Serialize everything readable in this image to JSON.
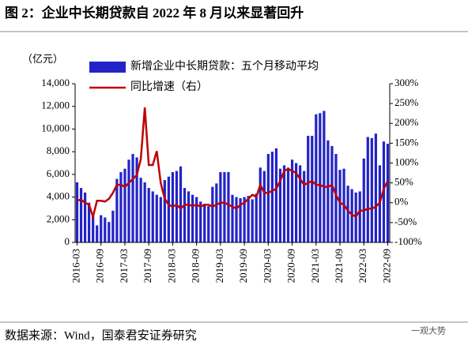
{
  "chart_data": {
    "type": "bar_line",
    "title": "图 2：企业中长期贷款自 2022 年 8 月以来显著回升",
    "y_unit": "（亿元）",
    "source": "数据来源：Wind，国泰君安证券研究",
    "watermark": "一观大势",
    "categories": [
      "2016-03",
      "2016-04",
      "2016-05",
      "2016-06",
      "2016-07",
      "2016-08",
      "2016-09",
      "2016-10",
      "2016-11",
      "2016-12",
      "2017-01",
      "2017-02",
      "2017-03",
      "2017-04",
      "2017-05",
      "2017-06",
      "2017-07",
      "2017-08",
      "2017-09",
      "2017-10",
      "2017-11",
      "2017-12",
      "2018-01",
      "2018-02",
      "2018-03",
      "2018-04",
      "2018-05",
      "2018-06",
      "2018-07",
      "2018-08",
      "2018-09",
      "2018-10",
      "2018-11",
      "2018-12",
      "2019-01",
      "2019-02",
      "2019-03",
      "2019-04",
      "2019-05",
      "2019-06",
      "2019-07",
      "2019-08",
      "2019-09",
      "2019-10",
      "2019-11",
      "2019-12",
      "2020-01",
      "2020-02",
      "2020-03",
      "2020-04",
      "2020-05",
      "2020-06",
      "2020-07",
      "2020-08",
      "2020-09",
      "2020-10",
      "2020-11",
      "2020-12",
      "2021-01",
      "2021-02",
      "2021-03",
      "2021-04",
      "2021-05",
      "2021-06",
      "2021-07",
      "2021-08",
      "2021-09",
      "2021-10",
      "2021-11",
      "2021-12",
      "2022-01",
      "2022-02",
      "2022-03",
      "2022-04",
      "2022-05",
      "2022-06",
      "2022-07",
      "2022-08",
      "2022-09"
    ],
    "xticks": [
      "2016-03",
      "2016-09",
      "2017-03",
      "2017-09",
      "2018-03",
      "2018-09",
      "2019-03",
      "2019-09",
      "2020-03",
      "2020-09",
      "2021-03",
      "2021-09",
      "2022-03",
      "2022-09"
    ],
    "series": [
      {
        "name": "新增企业中长期贷款：五个月移动平均",
        "color": "#2323c8",
        "axis": "y",
        "values": [
          5300,
          4800,
          4400,
          3500,
          2500,
          1500,
          2400,
          2200,
          1800,
          2800,
          5600,
          6200,
          6500,
          7300,
          7800,
          7500,
          5700,
          5300,
          4800,
          4500,
          4200,
          4000,
          5500,
          5800,
          6200,
          6300,
          6700,
          4800,
          4500,
          4200,
          4000,
          3600,
          3400,
          3200,
          4900,
          5200,
          6200,
          6200,
          6200,
          4200,
          4000,
          3900,
          4000,
          4100,
          3800,
          4300,
          6600,
          6300,
          7800,
          8000,
          8300,
          6500,
          6800,
          6600,
          7300,
          7000,
          6800,
          6300,
          9400,
          9400,
          11300,
          11400,
          11600,
          9000,
          8500,
          7800,
          6400,
          6500,
          5000,
          4700,
          4400,
          4500,
          7400,
          9300,
          9200,
          9600,
          6800,
          8900,
          8700
        ]
      },
      {
        "name": "同比增速（右）",
        "color": "#c00000",
        "axis": "y2",
        "values": [
          5,
          8,
          0,
          -5,
          -35,
          5,
          5,
          3,
          10,
          25,
          45,
          45,
          40,
          50,
          60,
          70,
          110,
          240,
          95,
          95,
          130,
          50,
          10,
          -5,
          -10,
          -5,
          -15,
          -5,
          -5,
          -8,
          -5,
          -10,
          -5,
          -5,
          -10,
          -5,
          0,
          0,
          -5,
          -10,
          -15,
          -5,
          0,
          10,
          20,
          15,
          45,
          25,
          25,
          30,
          35,
          55,
          80,
          85,
          80,
          75,
          60,
          45,
          50,
          55,
          45,
          45,
          40,
          40,
          45,
          20,
          0,
          -5,
          -20,
          -30,
          -35,
          -20,
          -20,
          -15,
          -15,
          -10,
          0,
          35,
          55
        ]
      }
    ],
    "ylim": [
      0,
      14000
    ],
    "yticks": [
      0,
      {
        "value": 2000,
        "label": "2,000"
      },
      {
        "value": 4000,
        "label": "4,000"
      },
      {
        "value": 6000,
        "label": "6,000"
      },
      {
        "value": 8000,
        "label": "8,000"
      },
      {
        "value": 10000,
        "label": "10,000"
      },
      {
        "value": 12000,
        "label": "12,000"
      },
      {
        "value": 14000,
        "label": "14,000"
      }
    ],
    "y2lim": [
      -100,
      300
    ],
    "y2ticks": [
      {
        "value": -100,
        "label": "-100%"
      },
      {
        "value": -50,
        "label": "-50%"
      },
      {
        "value": 0,
        "label": "0%"
      },
      {
        "value": 50,
        "label": "50%"
      },
      {
        "value": 100,
        "label": "100%"
      },
      {
        "value": 150,
        "label": "150%"
      },
      {
        "value": 200,
        "label": "200%"
      },
      {
        "value": 250,
        "label": "250%"
      },
      {
        "value": 300,
        "label": "300%"
      }
    ]
  }
}
